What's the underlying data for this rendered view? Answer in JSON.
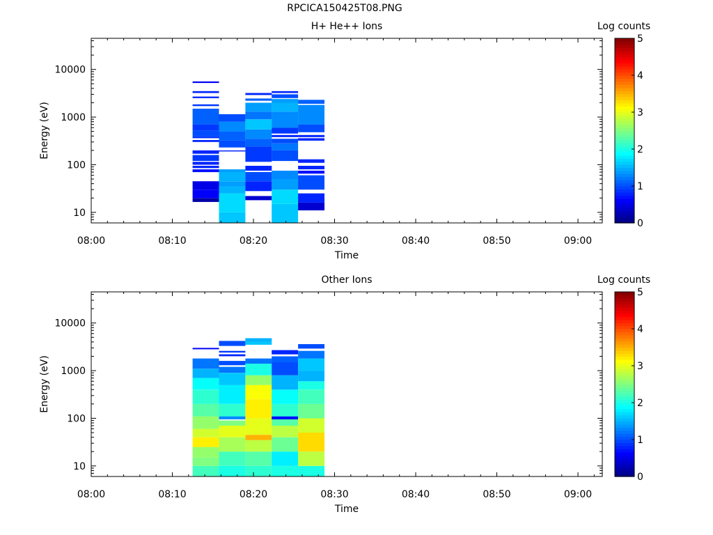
{
  "title": "RPCICA150425T08.PNG",
  "colorbar": {
    "label": "Log counts",
    "ticks": [
      "0",
      "1",
      "2",
      "3",
      "4",
      "5"
    ],
    "min": 0,
    "max": 5,
    "colormap": "jet"
  },
  "chart_data": [
    {
      "type": "heatmap",
      "title": "H+ He++ Ions",
      "xlabel": "Time",
      "ylabel": "Energy (eV)",
      "xlim": [
        "08:00",
        "09:03"
      ],
      "ylim": [
        6,
        45000
      ],
      "yscale": "log",
      "x_ticks": [
        "08:00",
        "08:10",
        "08:20",
        "08:30",
        "08:40",
        "08:50",
        "09:00"
      ],
      "y_ticks": [
        "10",
        "100",
        "1000",
        "10000"
      ],
      "colorbar_label": "Log counts",
      "intervals": [
        {
          "start": "08:12:30",
          "end": "08:15:45",
          "cells": [
            [
              16.5,
              20,
              0.2
            ],
            [
              20,
              30,
              0.6
            ],
            [
              30,
              45,
              0.5
            ],
            [
              70,
              80,
              0.7
            ],
            [
              85,
              95,
              0.8
            ],
            [
              100,
              115,
              0.8
            ],
            [
              120,
              160,
              0.9
            ],
            [
              170,
              200,
              0.8
            ],
            [
              300,
              330,
              0.8
            ],
            [
              360,
              400,
              0.9
            ],
            [
              400,
              520,
              1.0
            ],
            [
              520,
              700,
              0.9
            ],
            [
              700,
              1500,
              1.1
            ],
            [
              1700,
              1850,
              0.9
            ],
            [
              2500,
              2700,
              0.8
            ],
            [
              3200,
              3500,
              0.8
            ],
            [
              5200,
              5600,
              0.6
            ]
          ]
        },
        {
          "start": "08:15:45",
          "end": "08:19:00",
          "cells": [
            [
              6,
              10,
              1.6
            ],
            [
              10,
              25,
              1.7
            ],
            [
              25,
              35,
              1.5
            ],
            [
              35,
              45,
              1.4
            ],
            [
              45,
              70,
              1.5
            ],
            [
              70,
              80,
              1.4
            ],
            [
              190,
              200,
              0.8
            ],
            [
              230,
              320,
              1.0
            ],
            [
              320,
              500,
              1.1
            ],
            [
              500,
              800,
              1.3
            ],
            [
              800,
              1150,
              1.0
            ]
          ]
        },
        {
          "start": "08:19:00",
          "end": "08:22:15",
          "cells": [
            [
              18,
              22,
              0.4
            ],
            [
              28,
              45,
              0.8
            ],
            [
              45,
              70,
              1.0
            ],
            [
              75,
              95,
              0.8
            ],
            [
              115,
              240,
              0.9
            ],
            [
              240,
              350,
              1.1
            ],
            [
              350,
              550,
              1.3
            ],
            [
              550,
              900,
              1.6
            ],
            [
              900,
              1300,
              1.2
            ],
            [
              1300,
              2000,
              1.4
            ],
            [
              2200,
              2450,
              1.1
            ],
            [
              2900,
              3200,
              0.8
            ]
          ]
        },
        {
          "start": "08:22:15",
          "end": "08:25:30",
          "cells": [
            [
              6,
              15,
              1.6
            ],
            [
              15,
              30,
              1.7
            ],
            [
              30,
              50,
              1.4
            ],
            [
              50,
              75,
              1.3
            ],
            [
              120,
              200,
              1.0
            ],
            [
              200,
              280,
              1.2
            ],
            [
              280,
              350,
              1.0
            ],
            [
              380,
              420,
              0.8
            ],
            [
              450,
              600,
              0.9
            ],
            [
              600,
              1300,
              1.3
            ],
            [
              1300,
              2000,
              1.5
            ],
            [
              2000,
              2400,
              1.4
            ],
            [
              2500,
              3000,
              1.0
            ],
            [
              3200,
              3500,
              0.8
            ]
          ]
        },
        {
          "start": "08:25:30",
          "end": "08:28:45",
          "cells": [
            [
              11,
              16,
              0.4
            ],
            [
              16,
              25,
              0.8
            ],
            [
              30,
              60,
              1.0
            ],
            [
              65,
              75,
              0.7
            ],
            [
              80,
              95,
              0.8
            ],
            [
              110,
              130,
              0.8
            ],
            [
              320,
              360,
              0.8
            ],
            [
              380,
              420,
              0.8
            ],
            [
              480,
              700,
              1.0
            ],
            [
              700,
              1800,
              1.3
            ],
            [
              1900,
              2300,
              1.1
            ]
          ]
        }
      ]
    },
    {
      "type": "heatmap",
      "title": "Other Ions",
      "xlabel": "Time",
      "ylabel": "Energy (eV)",
      "xlim": [
        "08:00",
        "09:03"
      ],
      "ylim": [
        6,
        45000
      ],
      "yscale": "log",
      "x_ticks": [
        "08:00",
        "08:10",
        "08:20",
        "08:30",
        "08:40",
        "08:50",
        "09:00"
      ],
      "y_ticks": [
        "10",
        "100",
        "1000",
        "10000"
      ],
      "colorbar_label": "Log counts",
      "intervals": [
        {
          "start": "08:12:30",
          "end": "08:15:45",
          "cells": [
            [
              6,
              10,
              2.2
            ],
            [
              10,
              15,
              2.5
            ],
            [
              15,
              25,
              2.6
            ],
            [
              25,
              40,
              3.2
            ],
            [
              40,
              60,
              2.9
            ],
            [
              60,
              110,
              2.6
            ],
            [
              110,
              200,
              2.3
            ],
            [
              200,
              400,
              2.1
            ],
            [
              400,
              700,
              1.9
            ],
            [
              700,
              1100,
              1.5
            ],
            [
              1100,
              1800,
              1.2
            ],
            [
              2800,
              3000,
              0.6
            ]
          ]
        },
        {
          "start": "08:15:45",
          "end": "08:19:00",
          "cells": [
            [
              6,
              10,
              2.0
            ],
            [
              10,
              20,
              2.2
            ],
            [
              20,
              40,
              2.7
            ],
            [
              40,
              70,
              3.0
            ],
            [
              70,
              90,
              2.5
            ],
            [
              95,
              110,
              1.3
            ],
            [
              110,
              200,
              2.1
            ],
            [
              200,
              500,
              1.8
            ],
            [
              500,
              900,
              1.6
            ],
            [
              900,
              1200,
              1.2
            ],
            [
              1300,
              1600,
              1.0
            ],
            [
              2000,
              2200,
              0.8
            ],
            [
              2400,
              2600,
              0.9
            ],
            [
              3300,
              4200,
              1.0
            ]
          ]
        },
        {
          "start": "08:19:00",
          "end": "08:22:15",
          "cells": [
            [
              6,
              10,
              2.1
            ],
            [
              10,
              20,
              2.3
            ],
            [
              20,
              35,
              2.8
            ],
            [
              35,
              45,
              3.5
            ],
            [
              45,
              100,
              3.0
            ],
            [
              100,
              250,
              3.2
            ],
            [
              250,
              500,
              3.1
            ],
            [
              500,
              800,
              2.6
            ],
            [
              800,
              1400,
              2.0
            ],
            [
              1400,
              1800,
              1.2
            ],
            [
              3500,
              4000,
              1.6
            ],
            [
              4000,
              4800,
              1.5
            ]
          ]
        },
        {
          "start": "08:22:15",
          "end": "08:25:30",
          "cells": [
            [
              6,
              10,
              2.0
            ],
            [
              10,
              20,
              1.8
            ],
            [
              20,
              40,
              2.4
            ],
            [
              40,
              70,
              2.8
            ],
            [
              70,
              95,
              2.3
            ],
            [
              95,
              110,
              0.7
            ],
            [
              110,
              200,
              2.1
            ],
            [
              200,
              400,
              1.9
            ],
            [
              400,
              800,
              1.5
            ],
            [
              800,
              1500,
              1.0
            ],
            [
              1500,
              2000,
              1.1
            ],
            [
              2200,
              2700,
              0.8
            ]
          ]
        },
        {
          "start": "08:25:30",
          "end": "08:28:45",
          "cells": [
            [
              6,
              10,
              2.0
            ],
            [
              10,
              20,
              2.8
            ],
            [
              20,
              50,
              3.3
            ],
            [
              50,
              100,
              2.9
            ],
            [
              100,
              200,
              2.4
            ],
            [
              200,
              400,
              2.2
            ],
            [
              400,
              600,
              2.0
            ],
            [
              600,
              1000,
              1.5
            ],
            [
              1000,
              1800,
              1.6
            ],
            [
              1800,
              2600,
              1.2
            ],
            [
              2900,
              3600,
              1.0
            ]
          ]
        }
      ]
    }
  ]
}
